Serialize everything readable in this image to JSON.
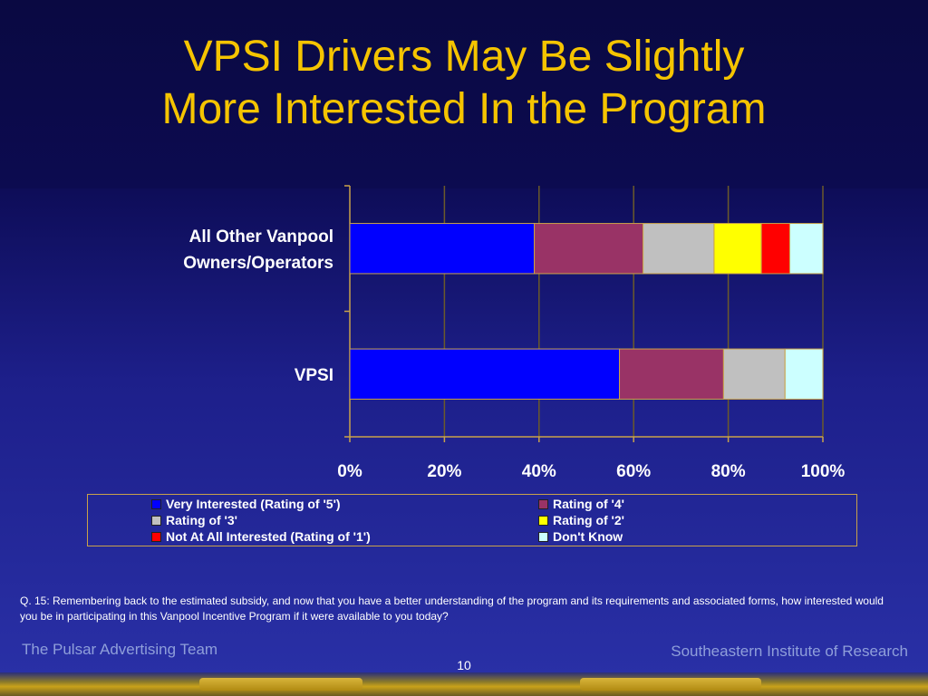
{
  "slide": {
    "title_line1": "VPSI Drivers May Be Slightly",
    "title_line2": "More Interested In the Program",
    "question": "Q. 15: Remembering back to the estimated subsidy, and now that you have a better understanding of the program and its requirements and associated forms, how interested would you be in participating in this Vanpool Incentive Program if it were available to you today?",
    "footer_left": "The Pulsar Advertising Team",
    "footer_right": "Southeastern Institute of Research",
    "page_number": "10"
  },
  "colors": {
    "title": "#f5c400",
    "very_interested": "#0000ff",
    "rating4": "#993366",
    "rating3": "#c0c0c0",
    "rating2": "#ffff00",
    "rating1": "#ff0000",
    "dont_know": "#ccffff"
  },
  "chart_data": {
    "type": "bar",
    "orientation": "horizontal",
    "stacked": true,
    "categories": [
      "All Other Vanpool Owners/Operators",
      "VPSI"
    ],
    "category_label_lines": [
      [
        "All Other Vanpool",
        "Owners/Operators"
      ],
      [
        "VPSI"
      ]
    ],
    "series": [
      {
        "name": "Very Interested (Rating of '5')",
        "values": [
          39,
          57
        ],
        "color": "#0000ff"
      },
      {
        "name": "Rating of '4'",
        "values": [
          23,
          22
        ],
        "color": "#993366"
      },
      {
        "name": "Rating of '3'",
        "values": [
          15,
          13
        ],
        "color": "#c0c0c0"
      },
      {
        "name": "Rating of '2'",
        "values": [
          10,
          0
        ],
        "color": "#ffff00"
      },
      {
        "name": "Not At All Interested (Rating of '1')",
        "values": [
          6,
          0
        ],
        "color": "#ff0000"
      },
      {
        "name": "Don't Know",
        "values": [
          7,
          8
        ],
        "color": "#ccffff"
      }
    ],
    "xlim": [
      0,
      100
    ],
    "x_ticks": [
      "0%",
      "20%",
      "40%",
      "60%",
      "80%",
      "100%"
    ],
    "grid": true,
    "legend_position": "bottom"
  }
}
